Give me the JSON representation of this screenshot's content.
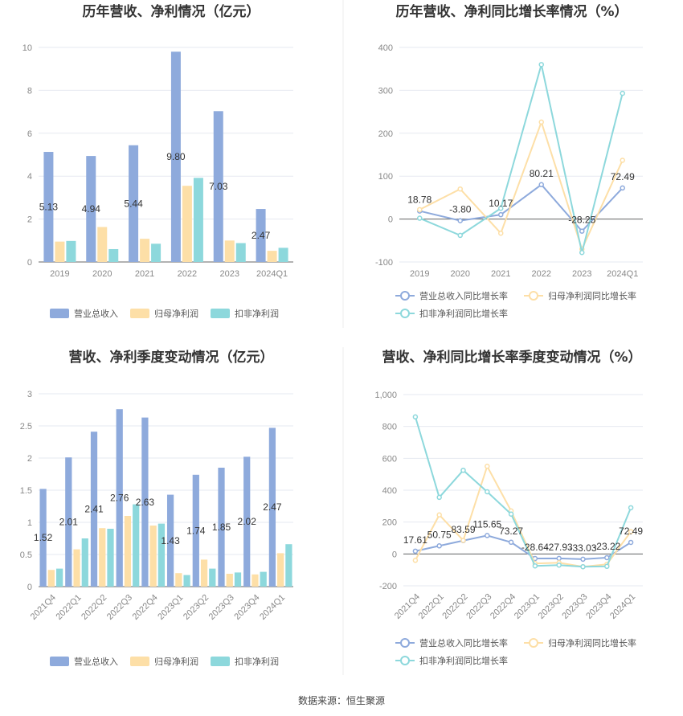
{
  "source": "数据来源：恒生聚源",
  "legend": {
    "revenue": "营业总收入",
    "net_profit": "归母净利润",
    "deducted_profit": "扣非净利润",
    "revenue_growth": "营业总收入同比增长率",
    "net_profit_growth": "归母净利润同比增长率",
    "deducted_growth": "扣非净利润同比增长率"
  },
  "colors": {
    "revenue": "#8eaadc",
    "net_profit": "#fddfa7",
    "deducted_profit": "#8dd8dc",
    "revenue_line": "#8eaadc",
    "net_profit_line": "#fddfa7",
    "deducted_line": "#8dd8dc"
  },
  "chart_data": [
    {
      "type": "bar",
      "title": "历年营收、净利情况（亿元）",
      "categories": [
        "2019",
        "2020",
        "2021",
        "2022",
        "2023",
        "2024Q1"
      ],
      "series": [
        {
          "name": "营业总收入",
          "values": [
            5.13,
            4.94,
            5.44,
            9.8,
            7.03,
            2.47
          ],
          "labels": [
            "5.13",
            "4.94",
            "5.44",
            "9.80",
            "7.03",
            "2.47"
          ]
        },
        {
          "name": "归母净利润",
          "values": [
            0.95,
            1.63,
            1.08,
            3.55,
            1.0,
            0.52
          ]
        },
        {
          "name": "扣非净利润",
          "values": [
            0.98,
            0.6,
            0.85,
            3.92,
            0.88,
            0.66
          ]
        }
      ],
      "ylim": [
        0,
        10
      ],
      "yticks": [
        "0",
        "2",
        "4",
        "6",
        "8",
        "10"
      ],
      "grid": true,
      "legend_position": "bottom"
    },
    {
      "type": "line",
      "title": "历年营收、净利同比增长率情况（%）",
      "categories": [
        "2019",
        "2020",
        "2021",
        "2022",
        "2023",
        "2024Q1"
      ],
      "series": [
        {
          "name": "营业总收入同比增长率",
          "values": [
            18.78,
            -3.8,
            10.17,
            80.21,
            -28.25,
            72.49
          ],
          "labels": [
            "18.78",
            "-3.80",
            "10.17",
            "80.21",
            "-28.25",
            "72.49"
          ]
        },
        {
          "name": "归母净利润同比增长率",
          "values": [
            22,
            70,
            -33,
            226,
            -70,
            137
          ]
        },
        {
          "name": "扣非净利润同比增长率",
          "values": [
            2,
            -38,
            25,
            360,
            -78,
            293
          ]
        }
      ],
      "ylim": [
        -100,
        400
      ],
      "yticks": [
        "-100",
        "0",
        "100",
        "200",
        "300",
        "400"
      ],
      "grid": true,
      "legend_position": "bottom"
    },
    {
      "type": "bar",
      "title": "营收、净利季度变动情况（亿元）",
      "categories": [
        "2021Q4",
        "2022Q1",
        "2022Q2",
        "2022Q3",
        "2022Q4",
        "2023Q1",
        "2023Q2",
        "2023Q3",
        "2023Q4",
        "2024Q1"
      ],
      "series": [
        {
          "name": "营业总收入",
          "values": [
            1.52,
            2.01,
            2.41,
            2.76,
            2.63,
            1.43,
            1.74,
            1.85,
            2.02,
            2.47
          ],
          "labels": [
            "1.52",
            "2.01",
            "2.41",
            "2.76",
            "2.63",
            "1.43",
            "1.74",
            "1.85",
            "2.02",
            "2.47"
          ]
        },
        {
          "name": "归母净利润",
          "values": [
            0.26,
            0.58,
            0.91,
            1.1,
            0.95,
            0.21,
            0.42,
            0.2,
            0.19,
            0.52
          ]
        },
        {
          "name": "扣非净利润",
          "values": [
            0.28,
            0.75,
            0.9,
            1.28,
            0.98,
            0.18,
            0.28,
            0.22,
            0.23,
            0.66
          ]
        }
      ],
      "ylim": [
        0,
        3
      ],
      "yticks": [
        "0",
        "0.5",
        "1",
        "1.5",
        "2",
        "2.5",
        "3"
      ],
      "grid": true,
      "legend_position": "bottom"
    },
    {
      "type": "line",
      "title": "营收、净利同比增长率季度变动情况（%）",
      "categories": [
        "2021Q4",
        "2022Q1",
        "2022Q2",
        "2022Q3",
        "2022Q4",
        "2023Q1",
        "2023Q2",
        "2023Q3",
        "2023Q4",
        "2024Q1"
      ],
      "series": [
        {
          "name": "营业总收入同比增长率",
          "values": [
            17.61,
            50.75,
            83.59,
            115.65,
            73.27,
            -28.64,
            -27.93,
            -33.03,
            -23.22,
            72.49
          ],
          "labels": [
            "17.61",
            "50.75",
            "83.59",
            "115.65",
            "73.27",
            "-28.64",
            "-27.93",
            "-33.03",
            "-23.22",
            "72.49"
          ]
        },
        {
          "name": "归母净利润同比增长率",
          "values": [
            -40,
            245,
            85,
            550,
            270,
            -60,
            -55,
            -80,
            -65,
            140
          ]
        },
        {
          "name": "扣非净利润同比增长率",
          "values": [
            860,
            355,
            525,
            390,
            250,
            -75,
            -70,
            -80,
            -78,
            290
          ]
        }
      ],
      "ylim": [
        -200,
        1000
      ],
      "yticks": [
        "-200",
        "0",
        "200",
        "400",
        "600",
        "800",
        "1,000"
      ],
      "grid": true,
      "legend_position": "bottom"
    }
  ]
}
